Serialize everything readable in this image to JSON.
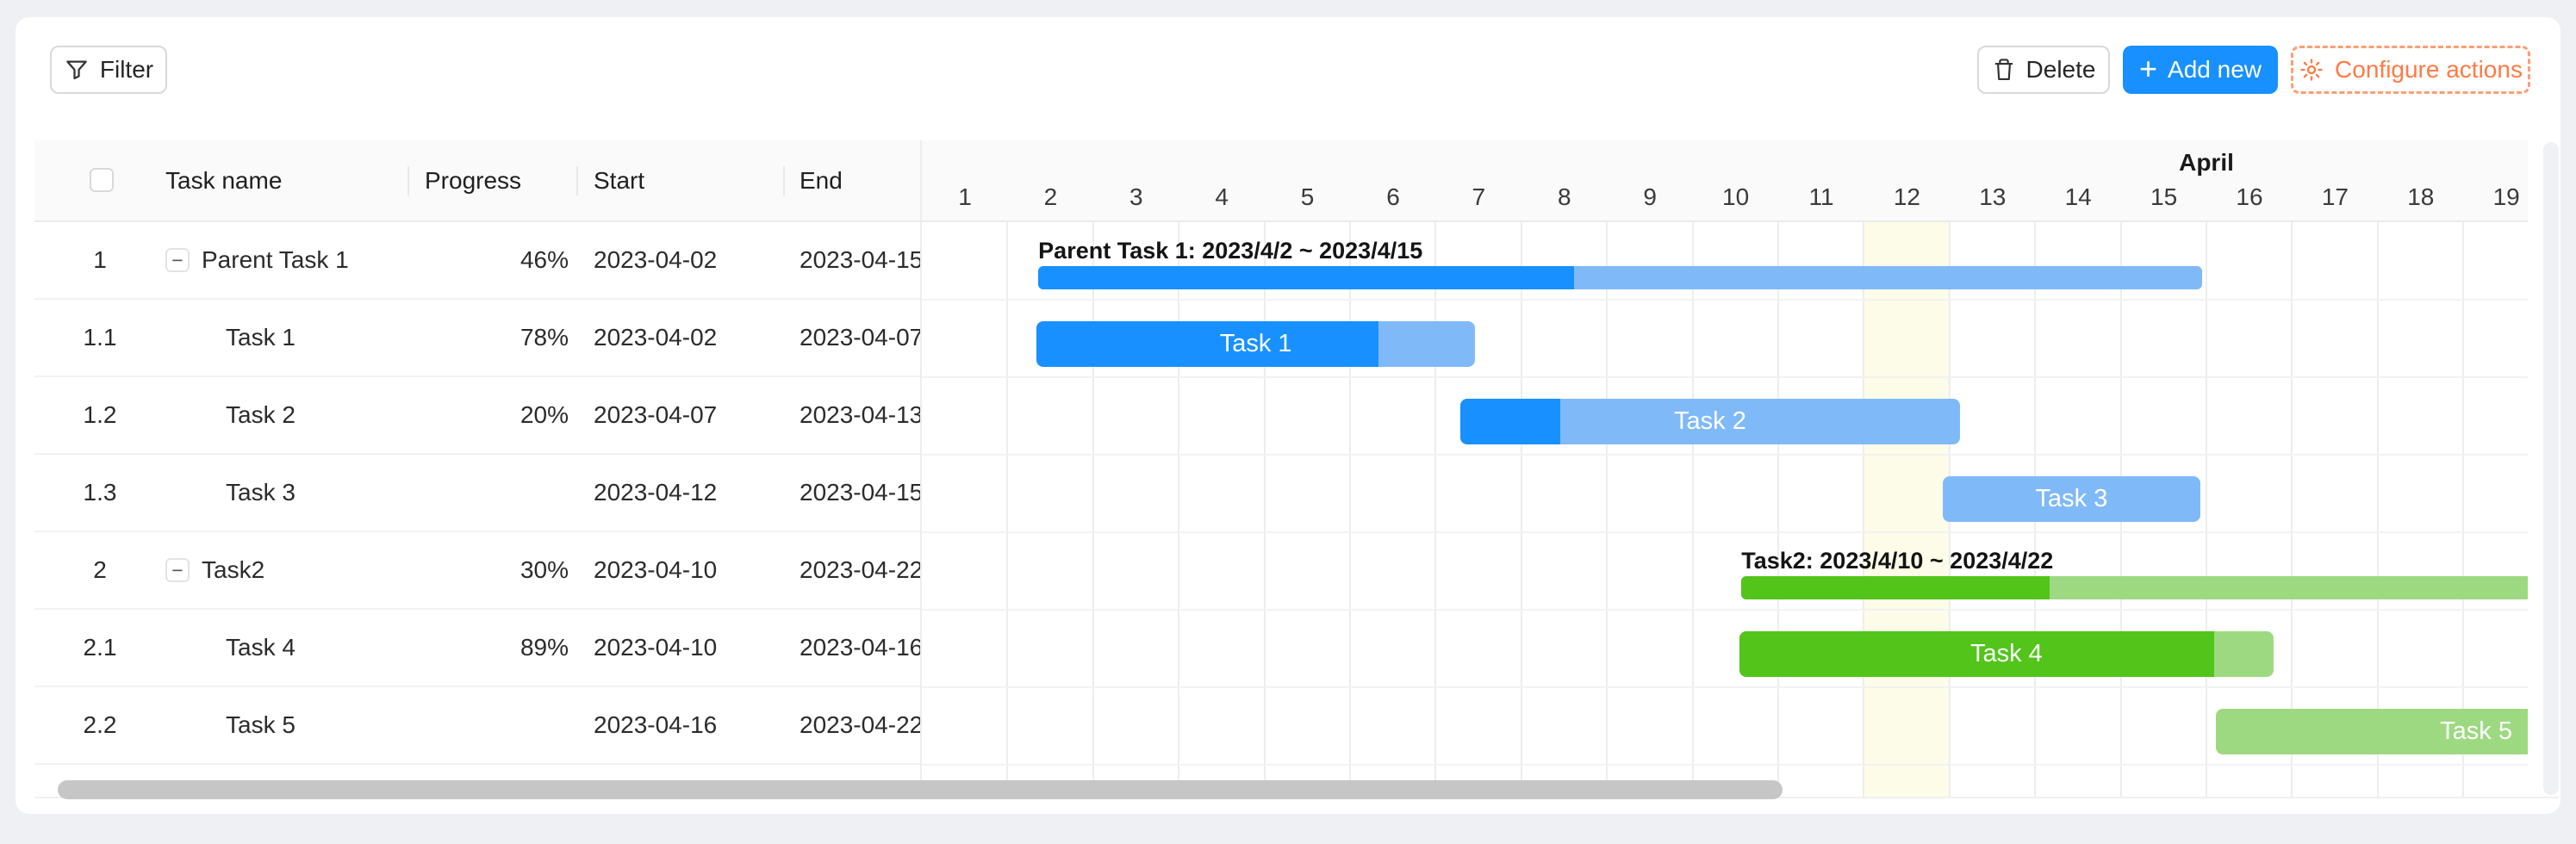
{
  "toolbar": {
    "filter_label": "Filter",
    "delete_label": "Delete",
    "add_new_label": "Add new",
    "add_new_plus": "+",
    "configure_label": "Configure actions"
  },
  "icons": {
    "collapse_glyph": "−"
  },
  "colors": {
    "blue": "#1890ff",
    "blue_light": "#80b9f8",
    "green": "#52c41a",
    "green_light": "#9dd981",
    "accent_orange": "#ff7a45",
    "primary_button": "#1890ff",
    "today_column": "#fcfce9"
  },
  "table": {
    "headers": {
      "task_name": "Task name",
      "progress": "Progress",
      "start": "Start",
      "end": "End"
    },
    "rows": [
      {
        "seq": "1",
        "name": "Parent Task 1",
        "parent": true,
        "progress": "46%",
        "start": "2023-04-02",
        "end": "2023-04-15"
      },
      {
        "seq": "1.1",
        "name": "Task 1",
        "parent": false,
        "progress": "78%",
        "start": "2023-04-02",
        "end": "2023-04-07"
      },
      {
        "seq": "1.2",
        "name": "Task 2",
        "parent": false,
        "progress": "20%",
        "start": "2023-04-07",
        "end": "2023-04-13"
      },
      {
        "seq": "1.3",
        "name": "Task 3",
        "parent": false,
        "progress": "",
        "start": "2023-04-12",
        "end": "2023-04-15"
      },
      {
        "seq": "2",
        "name": "Task2",
        "parent": true,
        "progress": "30%",
        "start": "2023-04-10",
        "end": "2023-04-22"
      },
      {
        "seq": "2.1",
        "name": "Task 4",
        "parent": false,
        "progress": "89%",
        "start": "2023-04-10",
        "end": "2023-04-16"
      },
      {
        "seq": "2.2",
        "name": "Task 5",
        "parent": false,
        "progress": "",
        "start": "2023-04-16",
        "end": "2023-04-22"
      }
    ]
  },
  "gantt": {
    "month_label": "April",
    "days": [
      1,
      2,
      3,
      4,
      5,
      6,
      7,
      8,
      9,
      10,
      11,
      12,
      13,
      14,
      15,
      16,
      17,
      18,
      19
    ],
    "today_day": 12,
    "bars": [
      {
        "row": 1,
        "kind": "parent",
        "palette": "blue",
        "start_day": 1.36,
        "end_day": 14.95,
        "progress": 46,
        "label": "Parent Task 1: 2023/4/2 ~ 2023/4/15",
        "label_pos": "above"
      },
      {
        "row": 2,
        "kind": "task",
        "palette": "blue",
        "start_day": 1.34,
        "end_day": 6.46,
        "progress": 78,
        "label": "Task 1",
        "label_pos": "center"
      },
      {
        "row": 3,
        "kind": "task",
        "palette": "blue",
        "start_day": 6.29,
        "end_day": 12.12,
        "progress": 20,
        "label": "Task 2",
        "label_pos": "center"
      },
      {
        "row": 4,
        "kind": "task",
        "palette": "blue",
        "start_day": 11.92,
        "end_day": 14.93,
        "progress": 0,
        "label": "Task 3",
        "label_pos": "center"
      },
      {
        "row": 5,
        "kind": "parent",
        "palette": "green",
        "start_day": 9.57,
        "end_day": 21.57,
        "progress": 30,
        "label": "Task2: 2023/4/10 ~ 2023/4/22",
        "label_pos": "above"
      },
      {
        "row": 6,
        "kind": "task",
        "palette": "green",
        "start_day": 9.55,
        "end_day": 15.78,
        "progress": 89,
        "label": "Task 4",
        "label_pos": "center"
      },
      {
        "row": 7,
        "kind": "task",
        "palette": "green",
        "start_day": 15.11,
        "end_day": 21.57,
        "progress": 0,
        "label": "Task 5",
        "label_pos": "right"
      }
    ]
  }
}
